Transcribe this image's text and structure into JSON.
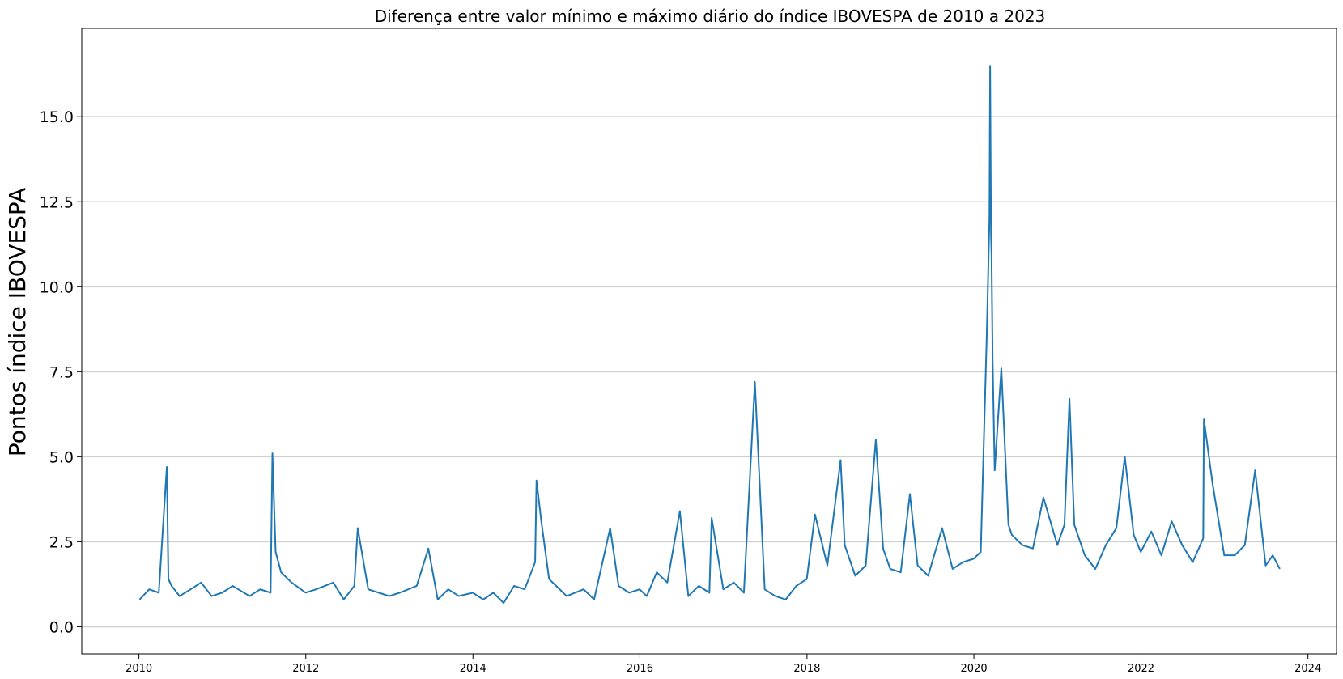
{
  "chart_data": {
    "type": "line",
    "title": "Diferença entre valor mínimo e máximo diário do índice IBOVESPA de 2010 a 2023",
    "xlabel": "",
    "ylabel": "Pontos índice IBOVESPA",
    "xlim": [
      "2009-04-26",
      "2024-05-05"
    ],
    "ylim": [
      -0.8,
      17.6
    ],
    "grid": "horizontal",
    "x_ticks": [
      "2010",
      "2012",
      "2014",
      "2016",
      "2018",
      "2020",
      "2022",
      "2024"
    ],
    "y_ticks": [
      "0.0",
      "2.5",
      "5.0",
      "7.5",
      "10.0",
      "12.5",
      "15.0"
    ],
    "colors": {
      "series": "#1f77b4",
      "grid": "#d0d0d0"
    },
    "series": [
      {
        "x": [
          "2010-01-04",
          "2010-02-15",
          "2010-03-29",
          "2010-05-03",
          "2010-05-10",
          "2010-05-24",
          "2010-06-28",
          "2010-08-15",
          "2010-09-30",
          "2010-11-15",
          "2010-12-31",
          "2011-02-15",
          "2011-04-30",
          "2011-06-15",
          "2011-07-31",
          "2011-08-08",
          "2011-08-22",
          "2011-09-15",
          "2011-10-31",
          "2011-12-31",
          "2012-02-15",
          "2012-04-30",
          "2012-06-15",
          "2012-07-31",
          "2012-08-15",
          "2012-09-30",
          "2012-11-15",
          "2012-12-31",
          "2013-02-15",
          "2013-04-30",
          "2013-06-20",
          "2013-07-31",
          "2013-09-15",
          "2013-10-31",
          "2013-12-31",
          "2014-02-15",
          "2014-03-31",
          "2014-05-15",
          "2014-06-30",
          "2014-08-15",
          "2014-09-30",
          "2014-10-06",
          "2014-10-27",
          "2014-11-30",
          "2014-12-31",
          "2015-02-15",
          "2015-04-30",
          "2015-06-15",
          "2015-08-24",
          "2015-09-30",
          "2015-11-15",
          "2015-12-31",
          "2016-01-31",
          "2016-03-15",
          "2016-04-30",
          "2016-06-24",
          "2016-07-31",
          "2016-09-15",
          "2016-10-31",
          "2016-11-10",
          "2016-12-31",
          "2017-02-15",
          "2017-03-31",
          "2017-05-18",
          "2017-06-30",
          "2017-08-15",
          "2017-09-30",
          "2017-11-15",
          "2017-12-31",
          "2018-02-05",
          "2018-03-31",
          "2018-05-28",
          "2018-06-15",
          "2018-07-31",
          "2018-09-15",
          "2018-10-29",
          "2018-11-30",
          "2018-12-31",
          "2019-02-15",
          "2019-03-27",
          "2019-04-30",
          "2019-06-15",
          "2019-08-15",
          "2019-09-30",
          "2019-11-15",
          "2019-12-31",
          "2020-01-31",
          "2020-02-26",
          "2020-03-09",
          "2020-03-12",
          "2020-03-16",
          "2020-03-18",
          "2020-03-23",
          "2020-04-01",
          "2020-04-30",
          "2020-05-31",
          "2020-06-15",
          "2020-07-31",
          "2020-09-15",
          "2020-10-31",
          "2020-12-31",
          "2021-01-31",
          "2021-02-22",
          "2021-03-15",
          "2021-04-30",
          "2021-06-15",
          "2021-07-31",
          "2021-09-15",
          "2021-10-22",
          "2021-11-30",
          "2021-12-31",
          "2022-02-15",
          "2022-03-31",
          "2022-05-15",
          "2022-06-30",
          "2022-08-15",
          "2022-09-30",
          "2022-10-03",
          "2022-11-10",
          "2022-12-31",
          "2023-02-15",
          "2023-03-31",
          "2023-05-15",
          "2023-06-30",
          "2023-07-31",
          "2023-08-31"
        ],
        "values": [
          0.8,
          1.1,
          1.0,
          4.7,
          1.4,
          1.2,
          0.9,
          1.1,
          1.3,
          0.9,
          1.0,
          1.2,
          0.9,
          1.1,
          1.0,
          5.1,
          2.2,
          1.6,
          1.3,
          1.0,
          1.1,
          1.3,
          0.8,
          1.2,
          2.9,
          1.1,
          1.0,
          0.9,
          1.0,
          1.2,
          2.3,
          0.8,
          1.1,
          0.9,
          1.0,
          0.8,
          1.0,
          0.7,
          1.2,
          1.1,
          1.9,
          4.3,
          3.1,
          1.4,
          1.2,
          0.9,
          1.1,
          0.8,
          2.9,
          1.2,
          1.0,
          1.1,
          0.9,
          1.6,
          1.3,
          3.4,
          0.9,
          1.2,
          1.0,
          3.2,
          1.1,
          1.3,
          1.0,
          7.2,
          1.1,
          0.9,
          0.8,
          1.2,
          1.4,
          3.3,
          1.8,
          4.9,
          2.4,
          1.5,
          1.8,
          5.5,
          2.3,
          1.7,
          1.6,
          3.9,
          1.8,
          1.5,
          2.9,
          1.7,
          1.9,
          2.0,
          2.2,
          8.5,
          12.0,
          16.5,
          11.5,
          11.0,
          7.8,
          4.6,
          7.6,
          3.0,
          2.7,
          2.4,
          2.3,
          3.8,
          2.4,
          3.0,
          6.7,
          3.0,
          2.1,
          1.7,
          2.4,
          2.9,
          5.0,
          2.7,
          2.2,
          2.8,
          2.1,
          3.1,
          2.4,
          1.9,
          2.6,
          6.1,
          4.2,
          2.1,
          2.1,
          2.4,
          4.6,
          1.8,
          2.1,
          1.7
        ]
      }
    ]
  }
}
